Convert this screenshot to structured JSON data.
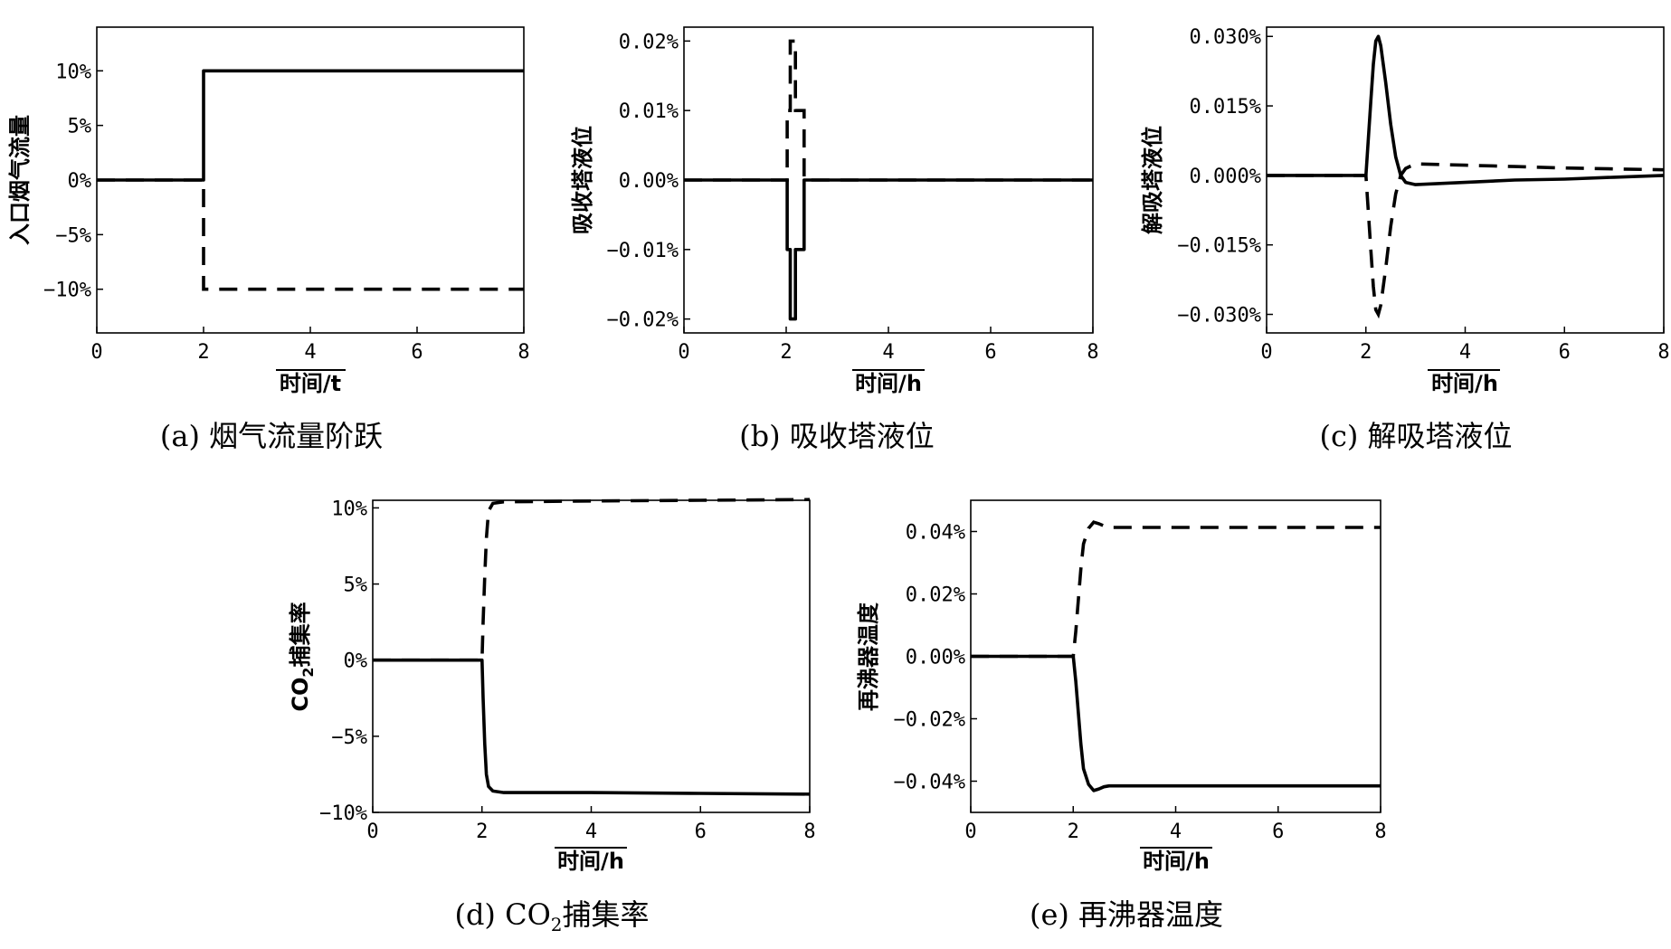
{
  "chart_data": [
    {
      "id": "a",
      "type": "line",
      "caption": "(a) 烟气流量阶跃",
      "xlabel": "时间/t",
      "ylabel": "入口烟气流量",
      "xlim": [
        0,
        8
      ],
      "ylim": [
        -14,
        14
      ],
      "xticks": [
        0,
        2,
        4,
        6,
        8
      ],
      "xtick_labels": [
        "0",
        "2",
        "4",
        "6",
        "8"
      ],
      "yticks": [
        -10,
        -5,
        0,
        5,
        10
      ],
      "ytick_labels": [
        "−10%",
        "−5%",
        "0%",
        "5%",
        "10%"
      ],
      "series": [
        {
          "style": "solid",
          "points": [
            [
              0,
              0
            ],
            [
              2,
              0
            ],
            [
              2,
              10
            ],
            [
              8,
              10
            ]
          ]
        },
        {
          "style": "dashed",
          "points": [
            [
              0,
              0
            ],
            [
              2,
              0
            ],
            [
              2,
              -10
            ],
            [
              8,
              -10
            ]
          ]
        }
      ]
    },
    {
      "id": "b",
      "type": "line",
      "caption": "(b) 吸收塔液位",
      "xlabel": "时间/h",
      "ylabel": "吸收塔液位",
      "xlim": [
        0,
        8
      ],
      "ylim": [
        -0.022,
        0.022
      ],
      "xticks": [
        0,
        2,
        4,
        6,
        8
      ],
      "xtick_labels": [
        "0",
        "2",
        "4",
        "6",
        "8"
      ],
      "yticks": [
        -0.02,
        -0.01,
        0,
        0.01,
        0.02
      ],
      "ytick_labels": [
        "−0.02%",
        "−0.01%",
        "0.00%",
        "0.01%",
        "0.02%"
      ],
      "series": [
        {
          "style": "solid",
          "points": [
            [
              0,
              0
            ],
            [
              2.02,
              0
            ],
            [
              2.02,
              -0.01
            ],
            [
              2.08,
              -0.01
            ],
            [
              2.08,
              -0.02
            ],
            [
              2.18,
              -0.02
            ],
            [
              2.18,
              -0.01
            ],
            [
              2.35,
              -0.01
            ],
            [
              2.35,
              0
            ],
            [
              8,
              0
            ]
          ]
        },
        {
          "style": "dashed",
          "points": [
            [
              0,
              0
            ],
            [
              2.02,
              0
            ],
            [
              2.02,
              0.01
            ],
            [
              2.08,
              0.01
            ],
            [
              2.08,
              0.02
            ],
            [
              2.18,
              0.02
            ],
            [
              2.18,
              0.01
            ],
            [
              2.35,
              0.01
            ],
            [
              2.35,
              0
            ],
            [
              8,
              0
            ]
          ]
        }
      ]
    },
    {
      "id": "c",
      "type": "line",
      "caption": "(c) 解吸塔液位",
      "xlabel": "时间/h",
      "ylabel": "解吸塔液位",
      "xlim": [
        0,
        8
      ],
      "ylim": [
        -0.034,
        0.032
      ],
      "xticks": [
        0,
        2,
        4,
        6,
        8
      ],
      "xtick_labels": [
        "0",
        "2",
        "4",
        "6",
        "8"
      ],
      "yticks": [
        -0.03,
        -0.015,
        0,
        0.015,
        0.03
      ],
      "ytick_labels": [
        "−0.030%",
        "−0.015%",
        "0.000%",
        "0.015%",
        "0.030%"
      ],
      "series": [
        {
          "style": "solid",
          "points": [
            [
              0,
              0
            ],
            [
              2,
              0
            ],
            [
              2.05,
              0.008
            ],
            [
              2.1,
              0.016
            ],
            [
              2.15,
              0.024
            ],
            [
              2.2,
              0.029
            ],
            [
              2.25,
              0.03
            ],
            [
              2.3,
              0.028
            ],
            [
              2.4,
              0.02
            ],
            [
              2.5,
              0.011
            ],
            [
              2.6,
              0.004
            ],
            [
              2.7,
              0.0
            ],
            [
              2.8,
              -0.0015
            ],
            [
              3.0,
              -0.002
            ],
            [
              4,
              -0.0015
            ],
            [
              5,
              -0.001
            ],
            [
              6,
              -0.0008
            ],
            [
              7,
              -0.0004
            ],
            [
              8,
              0.0
            ]
          ]
        },
        {
          "style": "dashed",
          "points": [
            [
              0,
              0
            ],
            [
              2,
              0
            ],
            [
              2.05,
              -0.008
            ],
            [
              2.1,
              -0.016
            ],
            [
              2.15,
              -0.024
            ],
            [
              2.2,
              -0.029
            ],
            [
              2.25,
              -0.03
            ],
            [
              2.3,
              -0.028
            ],
            [
              2.4,
              -0.02
            ],
            [
              2.5,
              -0.011
            ],
            [
              2.6,
              -0.004
            ],
            [
              2.7,
              0.0
            ],
            [
              2.8,
              0.0015
            ],
            [
              3.0,
              0.0025
            ],
            [
              4,
              0.0022
            ],
            [
              5,
              0.0019
            ],
            [
              6,
              0.0016
            ],
            [
              7,
              0.0014
            ],
            [
              8,
              0.0012
            ]
          ]
        }
      ]
    },
    {
      "id": "d",
      "type": "line",
      "caption": "(d) CO",
      "caption_sub": "2",
      "caption_rest": "捕集率",
      "xlabel": "时间/h",
      "ylabel": "CO",
      "ylabel_sub": "2",
      "ylabel_rest": "捕集率",
      "xlim": [
        0,
        8
      ],
      "ylim": [
        -10,
        10.5
      ],
      "xticks": [
        0,
        2,
        4,
        6,
        8
      ],
      "xtick_labels": [
        "0",
        "2",
        "4",
        "6",
        "8"
      ],
      "yticks": [
        -10,
        -5,
        0,
        5,
        10
      ],
      "ytick_labels": [
        "−10%",
        "−5%",
        "0%",
        "5%",
        "10%"
      ],
      "series": [
        {
          "style": "solid",
          "points": [
            [
              0,
              0
            ],
            [
              2,
              0
            ],
            [
              2.02,
              -2.5
            ],
            [
              2.05,
              -5.5
            ],
            [
              2.08,
              -7.5
            ],
            [
              2.12,
              -8.3
            ],
            [
              2.2,
              -8.6
            ],
            [
              2.4,
              -8.7
            ],
            [
              4,
              -8.7
            ],
            [
              6,
              -8.75
            ],
            [
              8,
              -8.8
            ]
          ]
        },
        {
          "style": "dashed",
          "points": [
            [
              0,
              0
            ],
            [
              2,
              0
            ],
            [
              2.02,
              2.5
            ],
            [
              2.05,
              5.5
            ],
            [
              2.08,
              8.0
            ],
            [
              2.12,
              9.8
            ],
            [
              2.2,
              10.3
            ],
            [
              2.4,
              10.4
            ],
            [
              4,
              10.45
            ],
            [
              6,
              10.5
            ],
            [
              8,
              10.55
            ]
          ]
        }
      ]
    },
    {
      "id": "e",
      "type": "line",
      "caption": "(e) 再沸器温度",
      "xlabel": "时间/h",
      "ylabel": "再沸器温度",
      "xlim": [
        0,
        8
      ],
      "ylim": [
        -0.05,
        0.05
      ],
      "xticks": [
        0,
        2,
        4,
        6,
        8
      ],
      "xtick_labels": [
        "0",
        "2",
        "4",
        "6",
        "8"
      ],
      "yticks": [
        -0.04,
        -0.02,
        0,
        0.02,
        0.04
      ],
      "ytick_labels": [
        "−0.04%",
        "−0.02%",
        "0.00%",
        "0.02%",
        "0.04%"
      ],
      "series": [
        {
          "style": "solid",
          "points": [
            [
              0,
              0
            ],
            [
              2,
              0
            ],
            [
              2.05,
              -0.008
            ],
            [
              2.1,
              -0.018
            ],
            [
              2.15,
              -0.028
            ],
            [
              2.2,
              -0.036
            ],
            [
              2.3,
              -0.041
            ],
            [
              2.4,
              -0.043
            ],
            [
              2.5,
              -0.0425
            ],
            [
              2.6,
              -0.0418
            ],
            [
              2.7,
              -0.0415
            ],
            [
              4,
              -0.0415
            ],
            [
              6,
              -0.0415
            ],
            [
              8,
              -0.0415
            ]
          ]
        },
        {
          "style": "dashed",
          "points": [
            [
              0,
              0
            ],
            [
              2,
              0
            ],
            [
              2.05,
              0.008
            ],
            [
              2.1,
              0.018
            ],
            [
              2.15,
              0.028
            ],
            [
              2.2,
              0.036
            ],
            [
              2.3,
              0.041
            ],
            [
              2.4,
              0.043
            ],
            [
              2.5,
              0.0425
            ],
            [
              2.6,
              0.0418
            ],
            [
              2.7,
              0.0413
            ],
            [
              4,
              0.0413
            ],
            [
              6,
              0.0413
            ],
            [
              8,
              0.0413
            ]
          ]
        }
      ]
    }
  ]
}
